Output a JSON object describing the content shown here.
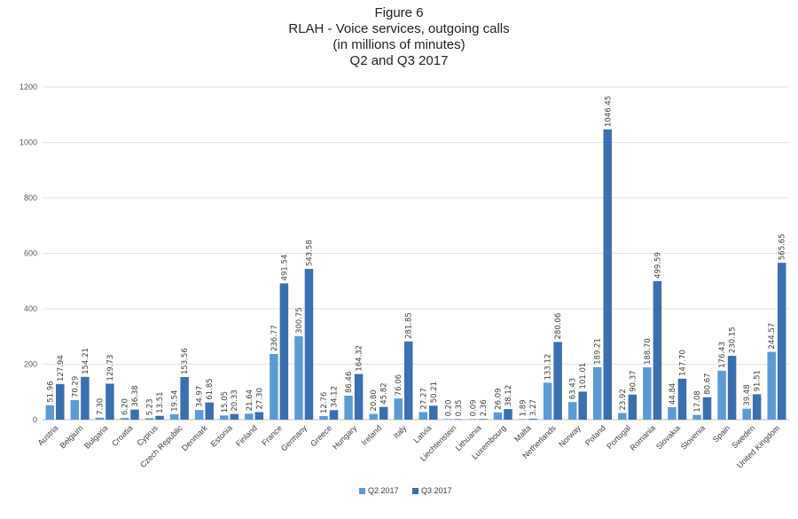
{
  "chart_data": {
    "type": "bar",
    "title": [
      "Figure 6",
      "RLAH - Voice services, outgoing calls",
      "(in millions of minutes)",
      "Q2 and Q3 2017"
    ],
    "xlabel": "",
    "ylabel": "",
    "ylim": [
      0,
      1200
    ],
    "yticks": [
      0,
      200,
      400,
      600,
      800,
      1000,
      1200
    ],
    "grid": true,
    "legend": "bottom-center",
    "categories": [
      "Austria",
      "Belgium",
      "Bulgaria",
      "Croatia",
      "Cyprus",
      "Czech Republic",
      "Denmark",
      "Estonia",
      "Finland",
      "France",
      "Germany",
      "Greece",
      "Hungary",
      "Ireland",
      "Italy",
      "Latvia",
      "Liechtenstein",
      "Lithuania",
      "Luxembourg",
      "Malta",
      "Netherlands",
      "Norway",
      "Poland",
      "Portugal",
      "Romania",
      "Slovakia",
      "Slovenia",
      "Spain",
      "Sweden",
      "United Kingdom"
    ],
    "series": [
      {
        "name": "Q2 2017",
        "color": "#5B9BD5",
        "values": [
          51.96,
          70.29,
          7.3,
          6.2,
          5.23,
          19.54,
          34.97,
          15.05,
          21.64,
          236.77,
          300.75,
          12.76,
          86.46,
          20.8,
          76.06,
          27.27,
          0.2,
          0.09,
          26.09,
          1.89,
          133.12,
          63.43,
          189.21,
          23.92,
          188.7,
          44.84,
          17.08,
          176.43,
          39.48,
          244.57
        ],
        "labels": [
          "51.96",
          "70.29",
          "7.30",
          "6.20",
          "5.23",
          "19.54",
          "34.97",
          "15.05",
          "21.64",
          "236.77",
          "300.75",
          "12.76",
          "86.46",
          "20.80",
          "76.06",
          "27.27",
          "0.20",
          "0.09",
          "26.09",
          "1.89",
          "133.12",
          "63.43",
          "189.21",
          "23.92",
          "188.70",
          "44.84",
          "17.08",
          "176.43",
          "39.48",
          "244.57"
        ]
      },
      {
        "name": "Q3 2017",
        "color": "#3A6FB0",
        "values": [
          127.94,
          154.21,
          129.73,
          36.38,
          13.51,
          153.56,
          61.85,
          20.33,
          27.3,
          491.54,
          543.58,
          34.12,
          164.32,
          45.82,
          281.85,
          50.21,
          0.35,
          2.36,
          38.12,
          3.27,
          280.06,
          101.01,
          1046.45,
          90.37,
          499.59,
          147.7,
          80.67,
          230.15,
          91.51,
          565.65
        ],
        "labels": [
          "127.94",
          "154.21",
          "129.73",
          "36.38",
          "13.51",
          "153.56",
          "61.85",
          "20.33",
          "27.30",
          "491.54",
          "543.58",
          "34.12",
          "164.32",
          "45.82",
          "281.85",
          "50.21",
          "0.35",
          "2.36",
          "38.12",
          "3.27",
          "280.06",
          "101.01",
          "1046.45",
          "90.37",
          "499.59",
          "147.70",
          "80.67",
          "230.15",
          "91.51",
          "565.65"
        ]
      }
    ]
  }
}
